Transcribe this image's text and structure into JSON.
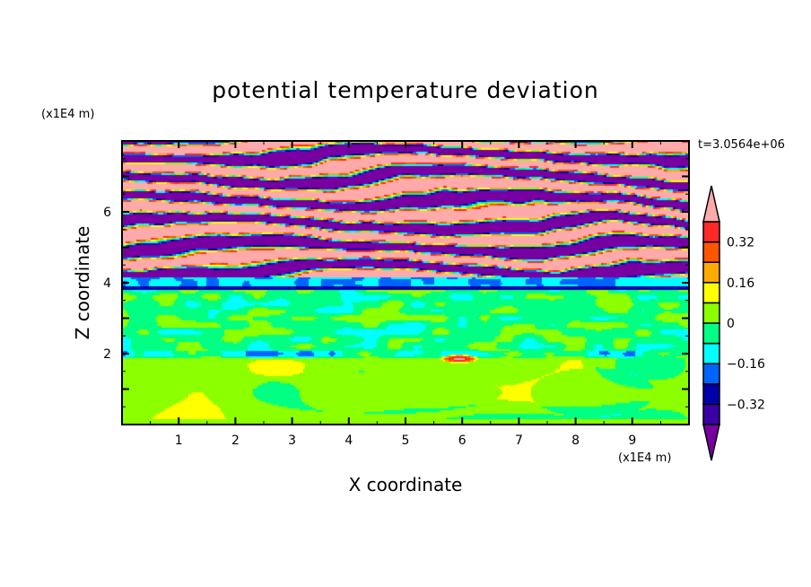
{
  "chart_data": {
    "type": "heatmap",
    "subtype": "filled-contour",
    "title": "potential temperature deviation",
    "xlabel": "X coordinate",
    "ylabel": "Z coordinate",
    "x_unit": "(x1E4 m)",
    "y_unit": "(x1E4 m)",
    "annotation": "t=3.0564e+06",
    "xlim": [
      0,
      10
    ],
    "ylim": [
      0,
      8
    ],
    "xticks": [
      1,
      2,
      3,
      4,
      5,
      6,
      7,
      8,
      9
    ],
    "yticks": [
      2,
      4,
      6
    ],
    "colorbar": {
      "levels": [
        -0.4,
        -0.32,
        -0.24,
        -0.16,
        -0.08,
        0,
        0.08,
        0.16,
        0.24,
        0.32,
        0.4
      ],
      "tick_labels": [
        "0.32",
        "0.16",
        "0",
        "−0.16",
        "−0.32"
      ],
      "tick_values": [
        0.32,
        0.16,
        0,
        -0.16,
        -0.32
      ],
      "colors": [
        "#3a00a6",
        "#0000aa",
        "#0064ff",
        "#00ffff",
        "#00ff82",
        "#8cff00",
        "#ffff00",
        "#ffaa00",
        "#ff5500",
        "#ff2828"
      ],
      "under_color": "#7800a0",
      "over_color": "#ffaaaa",
      "extend": "both"
    },
    "description_of_field": {
      "lower_layer_z_below_4": "values mostly between -0.08 and 0.08 (green / yellow-green), with a local maximum > 0.32 near x=6, z=1.9 and a thin negative band near z=2",
      "upper_layer_z_above_4": "alternating horizontal bands of values above 0.4 and below -0.4"
    }
  }
}
